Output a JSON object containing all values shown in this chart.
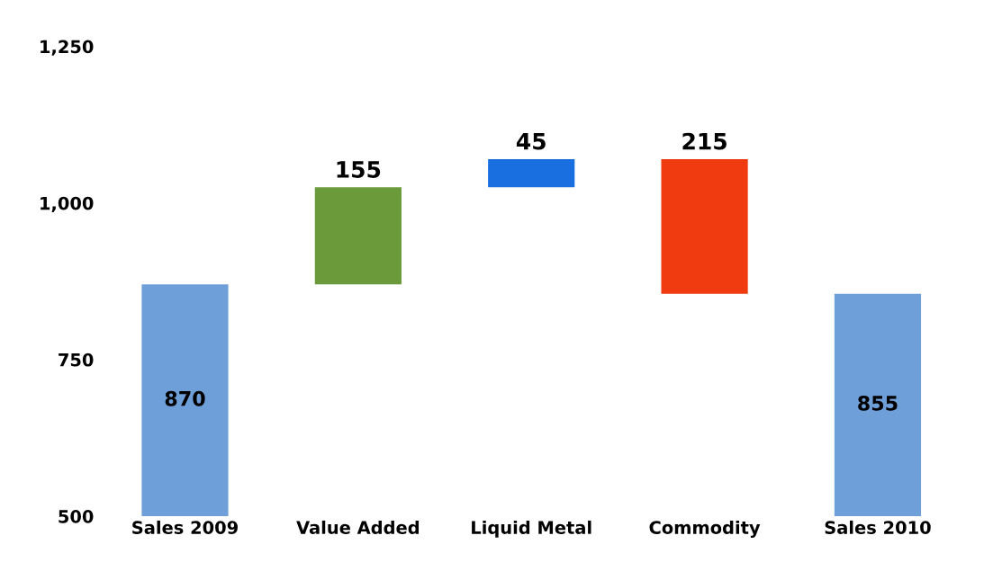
{
  "chart_data": {
    "type": "bar",
    "categories": [
      "Sales 2009",
      "Value Added",
      "Liquid Metal",
      "Commodity",
      "Sales 2010"
    ],
    "values": [
      870,
      155,
      45,
      -215,
      855
    ],
    "base": [
      0,
      870,
      1025,
      1070,
      0
    ],
    "colors": [
      "#6f9fd8",
      "#6a9a3a",
      "#1a6fe0",
      "#f03a10",
      "#6f9fd8"
    ],
    "value_labels": [
      "870",
      "155",
      "45",
      "215",
      "855"
    ],
    "ylim": [
      500,
      1250
    ],
    "yticks": [
      500,
      750,
      {
        "value": 1000,
        "label": "1,000"
      },
      {
        "value": 1250,
        "label": "1,250"
      }
    ],
    "grid": false
  }
}
